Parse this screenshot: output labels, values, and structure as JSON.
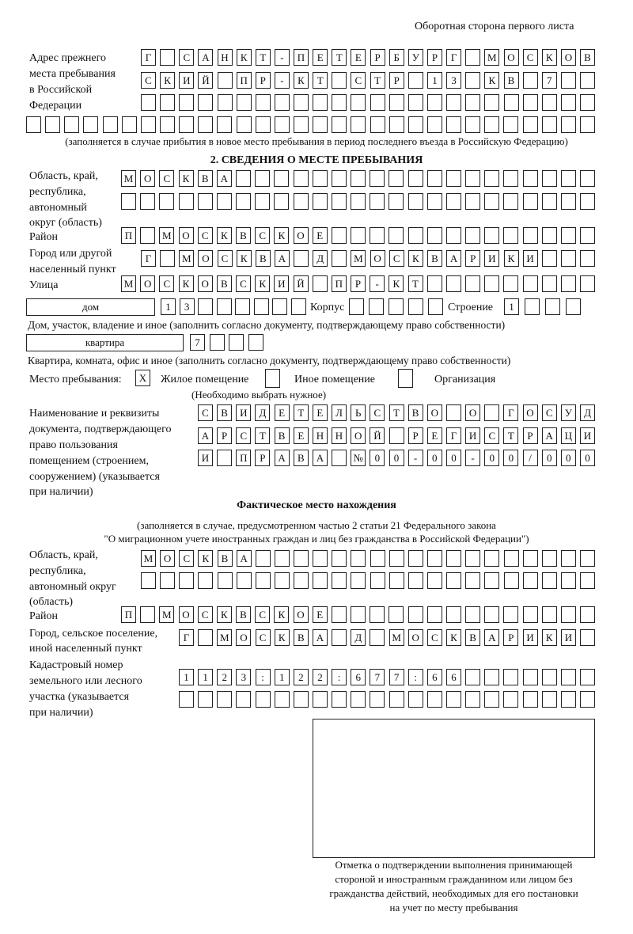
{
  "header": {
    "page_side": "Оборотная сторона первого листа"
  },
  "previous_address": {
    "label": [
      "Адрес прежнего",
      "места пребывания",
      "в Российской",
      "Федерации"
    ],
    "rows": [
      [
        "Г",
        "",
        "С",
        "А",
        "Н",
        "К",
        "Т",
        "-",
        "П",
        "Е",
        "Т",
        "Е",
        "Р",
        "Б",
        "У",
        "Р",
        "Г",
        "",
        "М",
        "О",
        "С",
        "К",
        "О",
        "В"
      ],
      [
        "С",
        "К",
        "И",
        "Й",
        "",
        "П",
        "Р",
        "-",
        "К",
        "Т",
        "",
        "С",
        "Т",
        "Р",
        "",
        "1",
        "3",
        "",
        "К",
        "В",
        "",
        "7",
        "",
        ""
      ],
      [
        "",
        "",
        "",
        "",
        "",
        "",
        "",
        "",
        "",
        "",
        "",
        "",
        "",
        "",
        "",
        "",
        "",
        "",
        "",
        "",
        "",
        "",
        "",
        ""
      ],
      [
        "",
        "",
        "",
        "",
        "",
        "",
        "",
        "",
        "",
        "",
        "",
        "",
        "",
        "",
        "",
        "",
        "",
        "",
        "",
        "",
        "",
        "",
        "",
        "",
        "",
        "",
        "",
        "",
        "",
        ""
      ]
    ],
    "note": "(заполняется в случае прибытия в новое место пребывания в период последнего въезда в Российскую Федерацию)"
  },
  "section2": {
    "title": "2. СВЕДЕНИЯ О МЕСТЕ ПРЕБЫВАНИЯ",
    "region_label": [
      "Область, край,",
      "республика,",
      "автономный",
      "округ (область)"
    ],
    "region_rows": [
      [
        "М",
        "О",
        "С",
        "К",
        "В",
        "А",
        "",
        "",
        "",
        "",
        "",
        "",
        "",
        "",
        "",
        "",
        "",
        "",
        "",
        "",
        "",
        "",
        "",
        "",
        ""
      ],
      [
        "",
        "",
        "",
        "",
        "",
        "",
        "",
        "",
        "",
        "",
        "",
        "",
        "",
        "",
        "",
        "",
        "",
        "",
        "",
        "",
        "",
        "",
        "",
        "",
        ""
      ]
    ],
    "district_label": "Район",
    "district_row": [
      "П",
      "",
      "М",
      "О",
      "С",
      "К",
      "В",
      "С",
      "К",
      "О",
      "Е",
      "",
      "",
      "",
      "",
      "",
      "",
      "",
      "",
      "",
      "",
      "",
      "",
      "",
      ""
    ],
    "city_label": [
      "Город или другой",
      "населенный пункт"
    ],
    "city_row": [
      "Г",
      "",
      "М",
      "О",
      "С",
      "К",
      "В",
      "А",
      "",
      "Д",
      "",
      "М",
      "О",
      "С",
      "К",
      "В",
      "А",
      "Р",
      "И",
      "К",
      "И",
      "",
      "",
      ""
    ],
    "street_label": "Улица",
    "street_row": [
      "М",
      "О",
      "С",
      "К",
      "О",
      "В",
      "С",
      "К",
      "И",
      "Й",
      "",
      "П",
      "Р",
      "-",
      "К",
      "Т",
      "",
      "",
      "",
      "",
      "",
      "",
      "",
      "",
      ""
    ],
    "house_type": "дом",
    "house_row": [
      "1",
      "3",
      "",
      "",
      "",
      "",
      "",
      ""
    ],
    "building_label": "Корпус",
    "building_row": [
      "",
      "",
      "",
      "",
      ""
    ],
    "structure_label": "Строение",
    "structure_row": [
      "1",
      "",
      "",
      ""
    ],
    "house_note": "Дом, участок, владение и иное (заполнить согласно документу, подтверждающему право собственности)",
    "apartment_type": "квартира",
    "apartment_row": [
      "7",
      "",
      "",
      ""
    ],
    "apartment_note": "Квартира, комната, офис и иное (заполнить согласно документу, подтверждающему право собственности)",
    "stay_place_label": "Место пребывания:",
    "stay_options": [
      {
        "label": "Жилое помещение",
        "mark": "X"
      },
      {
        "label": "Иное помещение",
        "mark": ""
      },
      {
        "label": "Организация",
        "mark": ""
      }
    ],
    "stay_note": "(Необходимо выбрать нужное)",
    "document_label": [
      "Наименование и реквизиты",
      "документа, подтверждающего",
      "право пользования",
      "помещением (строением,",
      "сооружением) (указывается",
      "при наличии)"
    ],
    "document_rows": [
      [
        "С",
        "В",
        "И",
        "Д",
        "Е",
        "Т",
        "Е",
        "Л",
        "Ь",
        "С",
        "Т",
        "В",
        "О",
        "",
        "О",
        "",
        "Г",
        "О",
        "С",
        "У",
        "Д"
      ],
      [
        "А",
        "Р",
        "С",
        "Т",
        "В",
        "Е",
        "Н",
        "Н",
        "О",
        "Й",
        "",
        "Р",
        "Е",
        "Г",
        "И",
        "С",
        "Т",
        "Р",
        "А",
        "Ц",
        "И"
      ],
      [
        "И",
        "",
        "П",
        "Р",
        "А",
        "В",
        "А",
        "",
        "№",
        "0",
        "0",
        "-",
        "0",
        "0",
        "-",
        "0",
        "0",
        "/",
        "0",
        "0",
        "0"
      ]
    ]
  },
  "actual_location": {
    "title": "Фактическое место нахождения",
    "note": [
      "(заполняется в случае, предусмотренном частью 2 статьи 21 Федерального закона",
      "\"О миграционном учете иностранных граждан и лиц без гражданства в Российской Федерации\")"
    ],
    "region_label": [
      "Область, край,",
      "республика,",
      "автономный округ",
      "(область)"
    ],
    "region_rows": [
      [
        "М",
        "О",
        "С",
        "К",
        "В",
        "А",
        "",
        "",
        "",
        "",
        "",
        "",
        "",
        "",
        "",
        "",
        "",
        "",
        "",
        "",
        "",
        "",
        "",
        ""
      ],
      [
        "",
        "",
        "",
        "",
        "",
        "",
        "",
        "",
        "",
        "",
        "",
        "",
        "",
        "",
        "",
        "",
        "",
        "",
        "",
        "",
        "",
        "",
        "",
        ""
      ]
    ],
    "district_label": "Район",
    "district_row": [
      "П",
      "",
      "М",
      "О",
      "С",
      "К",
      "В",
      "С",
      "К",
      "О",
      "Е",
      "",
      "",
      "",
      "",
      "",
      "",
      "",
      "",
      "",
      "",
      "",
      "",
      "",
      ""
    ],
    "city_label": [
      "Город, сельское поселение,",
      "иной населенный пункт"
    ],
    "city_row": [
      "Г",
      "",
      "М",
      "О",
      "С",
      "К",
      "В",
      "А",
      "",
      "Д",
      "",
      "М",
      "О",
      "С",
      "К",
      "В",
      "А",
      "Р",
      "И",
      "К",
      "И",
      ""
    ],
    "cadastral_label": [
      "Кадастровый номер",
      "земельного или лесного",
      "участка (указывается",
      "при наличии)"
    ],
    "cadastral_rows": [
      [
        "1",
        "1",
        "2",
        "3",
        ":",
        "1",
        "2",
        "2",
        ":",
        "6",
        "7",
        "7",
        ":",
        "6",
        "6",
        "",
        "",
        "",
        "",
        "",
        "",
        ""
      ],
      [
        "",
        "",
        "",
        "",
        "",
        "",
        "",
        "",
        "",
        "",
        "",
        "",
        "",
        "",
        "",
        "",
        "",
        "",
        "",
        "",
        "",
        ""
      ]
    ]
  },
  "confirmation": {
    "caption": [
      "Отметка о подтверждении выполнения принимающей",
      "стороной и иностранным гражданином или лицом без",
      "гражданства действий, необходимых для его постановки",
      "на учет по месту пребывания"
    ]
  }
}
